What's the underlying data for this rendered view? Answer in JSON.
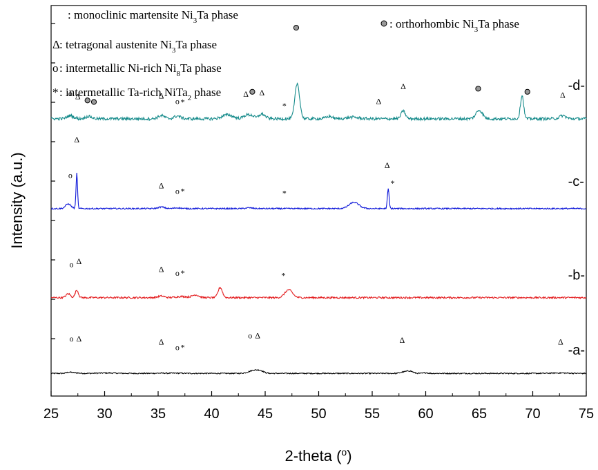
{
  "chart_data": {
    "type": "line",
    "xlabel": "2-theta (",
    "xlabel_sup": "o",
    "xlabel_tail": ")",
    "ylabel": "Intensity (a.u.)",
    "xlim": [
      25,
      75
    ],
    "xticks": [
      25,
      30,
      35,
      40,
      45,
      50,
      55,
      60,
      65,
      70,
      75
    ],
    "legend": [
      {
        "symbol": "",
        "text": ": monoclinic martensite Ni",
        "sub": "3",
        "tail": "Ta phase"
      },
      {
        "symbol": "Δ",
        "text": " : tetragonal austenite Ni",
        "sub": "3",
        "tail": "Ta phase"
      },
      {
        "symbol": "o",
        "text": " : intermetallic Ni-rich Ni",
        "sub": "8",
        "tail": "Ta phase"
      },
      {
        "symbol": "*",
        "text": " : intermetallic Ta-rich NiTa",
        "sub": "2",
        "tail": " phase"
      },
      {
        "symbol": "dot",
        "text": ": orthorhombic Ni",
        "sub": "3",
        "tail": "Ta phase"
      }
    ],
    "series": [
      {
        "name": "-a-",
        "color": "#000000",
        "baseline": 0.9,
        "peaks": [
          [
            26.7,
            0.15,
            0.25
          ],
          [
            27.3,
            0.07,
            0.3
          ],
          [
            30.2,
            0.05,
            0.8
          ],
          [
            35.3,
            0.03,
            0.5
          ],
          [
            36.8,
            0.03,
            0.5
          ],
          [
            44.0,
            0.4,
            0.5
          ],
          [
            44.6,
            0.18,
            0.3
          ],
          [
            57.9,
            0.15,
            0.3
          ],
          [
            58.5,
            0.3,
            0.3
          ],
          [
            60.0,
            0.08,
            0.2
          ],
          [
            72.5,
            0.05,
            0.8
          ]
        ],
        "noise": 0.05,
        "markers": [
          {
            "x": 26.9,
            "y": 5.0,
            "text": "o"
          },
          {
            "x": 27.6,
            "y": 5.0,
            "text": "Δ"
          },
          {
            "x": 35.3,
            "y": 4.6,
            "text": "Δ"
          },
          {
            "x": 36.8,
            "y": 3.9,
            "text": "o"
          },
          {
            "x": 37.3,
            "y": 3.9,
            "text": "*"
          },
          {
            "x": 43.6,
            "y": 5.4,
            "text": "o"
          },
          {
            "x": 44.3,
            "y": 5.4,
            "text": "Δ"
          },
          {
            "x": 57.8,
            "y": 4.8,
            "text": "Δ"
          },
          {
            "x": 72.6,
            "y": 4.6,
            "text": "Δ"
          }
        ]
      },
      {
        "name": "-b-",
        "color": "#e31a1c",
        "baseline": 10.6,
        "peaks": [
          [
            26.6,
            0.5,
            0.2
          ],
          [
            27.4,
            0.95,
            0.15
          ],
          [
            35.3,
            0.2,
            0.3
          ],
          [
            37.2,
            0.15,
            0.5
          ],
          [
            38.5,
            0.35,
            0.3
          ],
          [
            40.8,
            1.3,
            0.2
          ],
          [
            47.2,
            1.0,
            0.35
          ]
        ],
        "noise": 0.08,
        "markers": [
          {
            "x": 26.9,
            "y": 14.5,
            "text": "o"
          },
          {
            "x": 27.6,
            "y": 14.9,
            "text": "Δ"
          },
          {
            "x": 35.3,
            "y": 13.9,
            "text": "Δ"
          },
          {
            "x": 36.8,
            "y": 13.4,
            "text": "o"
          },
          {
            "x": 37.3,
            "y": 13.4,
            "text": "*"
          },
          {
            "x": 46.7,
            "y": 13.1,
            "text": "*"
          }
        ]
      },
      {
        "name": "-c-",
        "color": "#0a14d8",
        "baseline": 22.0,
        "peaks": [
          [
            26.6,
            0.6,
            0.25
          ],
          [
            27.4,
            4.5,
            0.07
          ],
          [
            35.3,
            0.2,
            0.3
          ],
          [
            36.8,
            0.1,
            0.3
          ],
          [
            43.5,
            0.1,
            0.3
          ],
          [
            53.3,
            0.8,
            0.45
          ],
          [
            56.5,
            2.5,
            0.08
          ]
        ],
        "noise": 0.06,
        "markers": [
          {
            "x": 26.8,
            "y": 25.9,
            "text": "o"
          },
          {
            "x": 27.4,
            "y": 30.5,
            "text": "Δ"
          },
          {
            "x": 35.3,
            "y": 24.6,
            "text": "Δ"
          },
          {
            "x": 36.8,
            "y": 23.9,
            "text": "o"
          },
          {
            "x": 37.3,
            "y": 23.9,
            "text": "*"
          },
          {
            "x": 46.8,
            "y": 23.6,
            "text": "*"
          },
          {
            "x": 56.4,
            "y": 27.2,
            "text": "Δ"
          },
          {
            "x": 56.9,
            "y": 24.9,
            "text": "*"
          }
        ]
      },
      {
        "name": "-d-",
        "color": "#148a8a",
        "baseline": 33.5,
        "peaks": [
          [
            26.8,
            0.4,
            0.3
          ],
          [
            28.5,
            0.3,
            0.3
          ],
          [
            35.3,
            0.4,
            0.3
          ],
          [
            36.8,
            0.35,
            0.3
          ],
          [
            41.5,
            0.5,
            0.5
          ],
          [
            43.3,
            0.5,
            0.3
          ],
          [
            43.8,
            0.3,
            0.2
          ],
          [
            44.7,
            0.6,
            0.3
          ],
          [
            48.0,
            4.5,
            0.22
          ],
          [
            51.0,
            0.3,
            0.3
          ],
          [
            53.2,
            0.2,
            0.5
          ],
          [
            57.9,
            1.0,
            0.2
          ],
          [
            65.0,
            1.1,
            0.3
          ],
          [
            69.0,
            3.0,
            0.15
          ],
          [
            72.8,
            0.4,
            0.3
          ]
        ],
        "noise": 0.13,
        "markers": [
          {
            "x": 26.8,
            "y": 36.4,
            "text": "o"
          },
          {
            "x": 27.5,
            "y": 36.0,
            "text": "Δ"
          },
          {
            "x": 28.4,
            "y": 35.5,
            "text": "dot"
          },
          {
            "x": 29.0,
            "y": 35.3,
            "text": "dot"
          },
          {
            "x": 35.3,
            "y": 36.1,
            "text": "Δ"
          },
          {
            "x": 36.8,
            "y": 35.4,
            "text": "o"
          },
          {
            "x": 37.3,
            "y": 35.3,
            "text": "*"
          },
          {
            "x": 43.2,
            "y": 36.3,
            "text": "Δ"
          },
          {
            "x": 43.8,
            "y": 36.6,
            "text": "dot"
          },
          {
            "x": 44.7,
            "y": 36.5,
            "text": "Δ"
          },
          {
            "x": 46.8,
            "y": 34.8,
            "text": "*"
          },
          {
            "x": 47.9,
            "y": 44.8,
            "text": "dot"
          },
          {
            "x": 55.6,
            "y": 35.4,
            "text": "Δ"
          },
          {
            "x": 57.9,
            "y": 37.3,
            "text": "Δ"
          },
          {
            "x": 64.9,
            "y": 37.0,
            "text": "dot"
          },
          {
            "x": 69.5,
            "y": 36.6,
            "text": "dot"
          },
          {
            "x": 72.8,
            "y": 36.2,
            "text": "Δ"
          }
        ]
      }
    ],
    "curve_labels": [
      {
        "text": "-a-",
        "x": 73.3,
        "y": 3.3
      },
      {
        "text": "-b-",
        "x": 73.3,
        "y": 12.9
      },
      {
        "text": "-c-",
        "x": 73.3,
        "y": 24.9
      },
      {
        "text": "-d-",
        "x": 73.3,
        "y": 37.2
      }
    ],
    "ylim": [
      -2,
      48
    ]
  }
}
